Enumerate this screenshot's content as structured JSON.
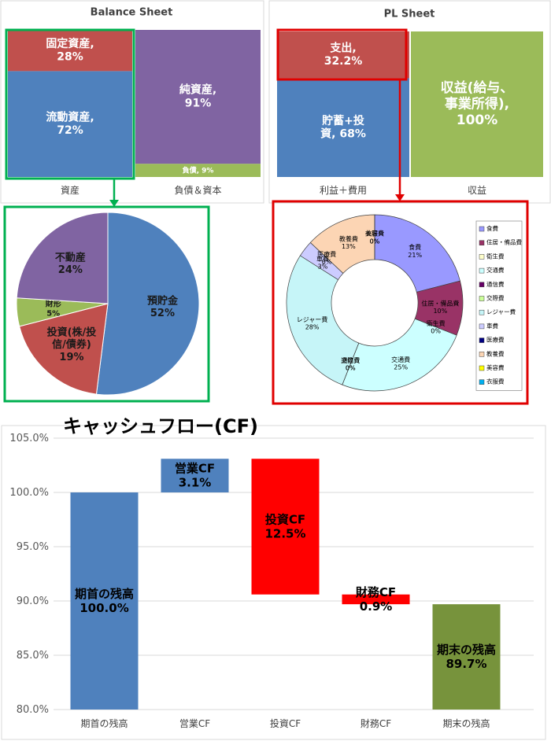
{
  "chart_data": [
    {
      "type": "stacked-bar",
      "title": "Balance Sheet",
      "categories": [
        "資産",
        "負債＆資本"
      ],
      "series": [
        {
          "name": "流動資産",
          "color": "#4f81bd",
          "values": [
            72,
            null
          ],
          "value_labels": [
            "流動資産,\n72%",
            null
          ]
        },
        {
          "name": "固定資産",
          "color": "#c0504d",
          "values": [
            28,
            null
          ],
          "value_labels": [
            "固定資産,\n28%",
            null
          ]
        },
        {
          "name": "負債",
          "color": "#9bbb59",
          "values": [
            null,
            9
          ],
          "value_labels": [
            null,
            "負債, 9%"
          ]
        },
        {
          "name": "純資産",
          "color": "#8064a2",
          "values": [
            null,
            91
          ],
          "value_labels": [
            null,
            "純資産,\n91%"
          ]
        }
      ]
    },
    {
      "type": "stacked-bar",
      "title": "PL Sheet",
      "categories": [
        "利益＋費用",
        "収益"
      ],
      "series": [
        {
          "name": "貯蓄+投資",
          "color": "#4f81bd",
          "values": [
            68,
            null
          ],
          "value_labels": [
            "貯蓄+投\n資, 68%",
            null
          ]
        },
        {
          "name": "支出",
          "color": "#c0504d",
          "values": [
            32.2,
            null
          ],
          "value_labels": [
            "支出,\n32.2%",
            null
          ]
        },
        {
          "name": "収益(給与、事業所得)",
          "color": "#9bbb59",
          "values": [
            null,
            100
          ],
          "value_labels": [
            null,
            "収益(給与、\n事業所得),\n100%"
          ]
        }
      ]
    },
    {
      "type": "pie",
      "categories": [
        "預貯金",
        "投資(株/投信/債券)",
        "財形",
        "不動産"
      ],
      "values": [
        52,
        19,
        5,
        24
      ],
      "value_labels": [
        "預貯金\n52%",
        "投資(株/投\n信/債券)\n19%",
        "財形\n5%",
        "不動産\n24%"
      ],
      "colors": [
        "#4f81bd",
        "#c0504d",
        "#9bbb59",
        "#8064a2"
      ]
    },
    {
      "type": "donut",
      "categories": [
        "食費",
        "住居・備品費",
        "衛生費",
        "交通費",
        "通信費",
        "交際費",
        "レジャー費",
        "車費",
        "医療費",
        "教養費",
        "美容費",
        "衣服費"
      ],
      "values": [
        21,
        10,
        0,
        25,
        0,
        0,
        28,
        3,
        0,
        13,
        0,
        0
      ],
      "value_labels": [
        "食費\n21%",
        "住居・備品費\n10%",
        "衛生費\n0%",
        "交通費\n25%",
        "通信費\n0%",
        "交際費\n0%",
        "レジャー費\n28%",
        "車費\n3%",
        "医療費\n0%",
        "教養費\n13%",
        "美容費\n0%",
        "衣服費\n0%"
      ],
      "colors": [
        "#9999ff",
        "#993366",
        "#ffffcc",
        "#ccffff",
        "#660066",
        "#ccff99",
        "#c6f5f8",
        "#ccccff",
        "#000080",
        "#fcd5b4",
        "#ffff00",
        "#00b0f0"
      ],
      "legend": "right"
    },
    {
      "type": "waterfall",
      "title": "キャッシュフロー(CF)",
      "categories": [
        "期首の残高",
        "営業CF",
        "投資CF",
        "財務CF",
        "期末の残高"
      ],
      "values": [
        100.0,
        3.1,
        -12.5,
        -0.9,
        89.7
      ],
      "value_labels": [
        "期首の残高\n100.0%",
        "営業CF\n3.1%",
        "投資CF\n12.5%",
        "財務CF\n0.9%",
        "期末の残高\n89.7%"
      ],
      "colors": [
        "#4f81bd",
        "#4f81bd",
        "#ff0000",
        "#ff0000",
        "#77933c"
      ],
      "ylim": [
        80,
        105
      ],
      "yticks": [
        {
          "value": 80,
          "label": "80.0%"
        },
        {
          "value": 85,
          "label": "85.0%"
        },
        {
          "value": 90,
          "label": "90.0%"
        },
        {
          "value": 95,
          "label": "95.0%"
        },
        {
          "value": 100,
          "label": "100.0%"
        },
        {
          "value": 105,
          "label": "105.0%"
        }
      ],
      "grid": true
    }
  ]
}
